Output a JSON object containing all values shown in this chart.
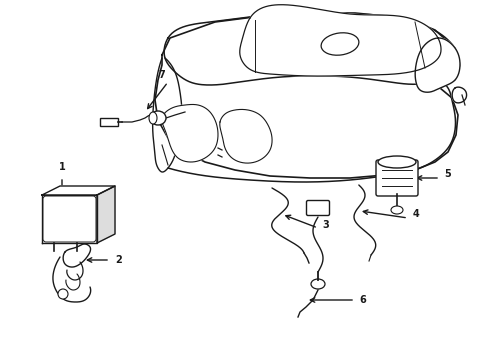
{
  "background_color": "#ffffff",
  "line_color": "#1a1a1a",
  "line_width": 1.0,
  "fig_width": 4.89,
  "fig_height": 3.6,
  "dpi": 100
}
